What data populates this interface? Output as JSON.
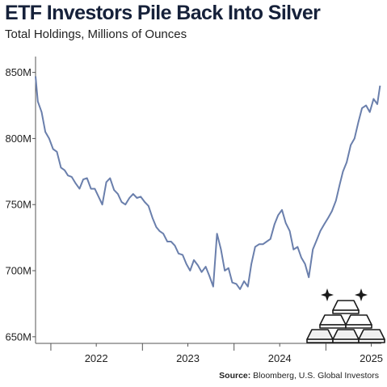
{
  "chart_data": {
    "type": "line",
    "title": "ETF Investors Pile Back Into Silver",
    "subtitle": "Total Holdings, Millions of Ounces",
    "source_label": "Source:",
    "source_text": " Bloomberg, U.S. Global Investors",
    "ylim": [
      645,
      862
    ],
    "y_ticks": [
      {
        "value": 650,
        "label": "650M"
      },
      {
        "value": 700,
        "label": "700M"
      },
      {
        "value": 750,
        "label": "750M"
      },
      {
        "value": 800,
        "label": "800M"
      },
      {
        "value": 850,
        "label": "850M"
      }
    ],
    "xlim": [
      "2021-11-01",
      "2025-08-10"
    ],
    "x_ticks": [
      {
        "date": "2022-01-01",
        "label": "2022",
        "kind": "year"
      },
      {
        "date": "2022-07-01",
        "label": "",
        "kind": "half"
      },
      {
        "date": "2023-01-01",
        "label": "2023",
        "kind": "year"
      },
      {
        "date": "2023-07-01",
        "label": "",
        "kind": "half"
      },
      {
        "date": "2024-01-01",
        "label": "2024",
        "kind": "year"
      },
      {
        "date": "2024-07-01",
        "label": "",
        "kind": "half"
      },
      {
        "date": "2025-01-01",
        "label": "2025",
        "kind": "year"
      },
      {
        "date": "2025-07-01",
        "label": "",
        "kind": "half"
      }
    ],
    "grid": false,
    "line_color": "#6a7fac",
    "series": [
      {
        "name": "",
        "points": [
          [
            "2021-11-01",
            847
          ],
          [
            "2021-11-10",
            828
          ],
          [
            "2021-11-25",
            820
          ],
          [
            "2021-12-10",
            805
          ],
          [
            "2021-12-25",
            800
          ],
          [
            "2022-01-10",
            792
          ],
          [
            "2022-01-25",
            790
          ],
          [
            "2022-02-10",
            778
          ],
          [
            "2022-02-25",
            776
          ],
          [
            "2022-03-10",
            772
          ],
          [
            "2022-03-25",
            771
          ],
          [
            "2022-04-10",
            766
          ],
          [
            "2022-04-25",
            762
          ],
          [
            "2022-05-10",
            769
          ],
          [
            "2022-05-25",
            770
          ],
          [
            "2022-06-10",
            762
          ],
          [
            "2022-06-25",
            762
          ],
          [
            "2022-07-10",
            756
          ],
          [
            "2022-07-25",
            750
          ],
          [
            "2022-08-10",
            767
          ],
          [
            "2022-08-25",
            770
          ],
          [
            "2022-09-10",
            761
          ],
          [
            "2022-09-25",
            758
          ],
          [
            "2022-10-10",
            752
          ],
          [
            "2022-10-25",
            750
          ],
          [
            "2022-11-10",
            755
          ],
          [
            "2022-11-25",
            758
          ],
          [
            "2022-12-10",
            755
          ],
          [
            "2022-12-25",
            756
          ],
          [
            "2023-01-10",
            752
          ],
          [
            "2023-01-25",
            749
          ],
          [
            "2023-02-10",
            740
          ],
          [
            "2023-02-25",
            733
          ],
          [
            "2023-03-10",
            730
          ],
          [
            "2023-03-25",
            728
          ],
          [
            "2023-04-10",
            722
          ],
          [
            "2023-04-25",
            722
          ],
          [
            "2023-05-10",
            719
          ],
          [
            "2023-05-25",
            713
          ],
          [
            "2023-06-10",
            712
          ],
          [
            "2023-06-25",
            705
          ],
          [
            "2023-07-10",
            700
          ],
          [
            "2023-07-25",
            708
          ],
          [
            "2023-08-10",
            704
          ],
          [
            "2023-08-25",
            699
          ],
          [
            "2023-09-10",
            703
          ],
          [
            "2023-09-25",
            696
          ],
          [
            "2023-10-10",
            688
          ],
          [
            "2023-10-25",
            728
          ],
          [
            "2023-11-10",
            716
          ],
          [
            "2023-11-25",
            700
          ],
          [
            "2023-12-10",
            702
          ],
          [
            "2023-12-25",
            691
          ],
          [
            "2024-01-10",
            690
          ],
          [
            "2024-01-25",
            686
          ],
          [
            "2024-02-10",
            692
          ],
          [
            "2024-02-25",
            688
          ],
          [
            "2024-03-10",
            705
          ],
          [
            "2024-03-25",
            718
          ],
          [
            "2024-04-10",
            720
          ],
          [
            "2024-04-25",
            720
          ],
          [
            "2024-05-10",
            722
          ],
          [
            "2024-05-25",
            724
          ],
          [
            "2024-06-10",
            735
          ],
          [
            "2024-06-25",
            742
          ],
          [
            "2024-07-10",
            746
          ],
          [
            "2024-07-25",
            736
          ],
          [
            "2024-08-10",
            730
          ],
          [
            "2024-08-25",
            716
          ],
          [
            "2024-09-10",
            718
          ],
          [
            "2024-09-25",
            710
          ],
          [
            "2024-10-10",
            705
          ],
          [
            "2024-10-25",
            695
          ],
          [
            "2024-11-10",
            716
          ],
          [
            "2024-11-25",
            723
          ],
          [
            "2024-12-10",
            730
          ],
          [
            "2024-12-25",
            735
          ],
          [
            "2025-01-10",
            740
          ],
          [
            "2025-01-25",
            745
          ],
          [
            "2025-02-10",
            753
          ],
          [
            "2025-02-25",
            765
          ],
          [
            "2025-03-10",
            775
          ],
          [
            "2025-03-25",
            782
          ],
          [
            "2025-04-10",
            795
          ],
          [
            "2025-04-25",
            800
          ],
          [
            "2025-05-10",
            812
          ],
          [
            "2025-05-25",
            823
          ],
          [
            "2025-06-10",
            825
          ],
          [
            "2025-06-25",
            820
          ],
          [
            "2025-07-10",
            830
          ],
          [
            "2025-07-25",
            826
          ],
          [
            "2025-08-05",
            840
          ]
        ]
      }
    ]
  }
}
